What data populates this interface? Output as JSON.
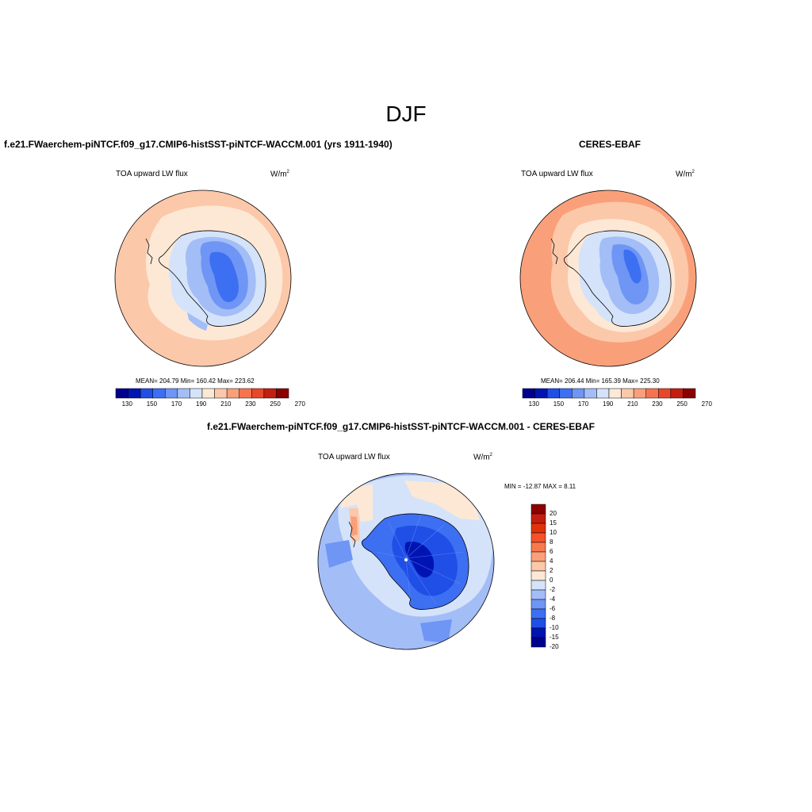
{
  "title": "DJF",
  "panels": [
    {
      "id": "model",
      "title": "f.e21.FWaerchem-piNTCF.f09_g17.CMIP6-histSST-piNTCF-WACCM.001 (yrs 1911-1940)",
      "field_label": "TOA upward LW flux",
      "units_base": "W/m",
      "units_exp": "2",
      "stats": "MEAN= 204.79  Min= 160.42  Max= 223.62",
      "colorbar_ticks": [
        "130",
        "150",
        "170",
        "190",
        "210",
        "230",
        "250",
        "270"
      ]
    },
    {
      "id": "obs",
      "title": "CERES-EBAF",
      "field_label": "TOA upward LW flux",
      "units_base": "W/m",
      "units_exp": "2",
      "stats": "MEAN= 206.44  Min= 165.39  Max= 225.30",
      "colorbar_ticks": [
        "130",
        "150",
        "170",
        "190",
        "210",
        "230",
        "250",
        "270"
      ]
    },
    {
      "id": "diff",
      "title": "f.e21.FWaerchem-piNTCF.f09_g17.CMIP6-histSST-piNTCF-WACCM.001 - CERES-EBAF",
      "field_label": "TOA upward LW flux",
      "units_base": "W/m",
      "units_exp": "2",
      "stats": "MIN = -12.87 MAX =   8.11",
      "colorbar_ticks": [
        "20",
        "15",
        "10",
        "8",
        "6",
        "4",
        "2",
        "0",
        "-2",
        "-4",
        "-6",
        "-8",
        "-10",
        "-15",
        "-20"
      ]
    }
  ],
  "colors": {
    "abs_scale": [
      "#00008f",
      "#0014b4",
      "#1f4fe6",
      "#3d6ff2",
      "#6f95f5",
      "#a3bdf7",
      "#d4e3fa",
      "#fde8d6",
      "#fcc8aa",
      "#f9a07a",
      "#f5744f",
      "#e8472b",
      "#c41e0f",
      "#8b0000"
    ],
    "diff_scale": [
      "#8b0000",
      "#c41e0f",
      "#e0320a",
      "#f5512a",
      "#f77a4d",
      "#f9a07a",
      "#fcc8aa",
      "#fde8d6",
      "#d4e3fa",
      "#a3bdf7",
      "#6f95f5",
      "#3d6ff2",
      "#1f4fe6",
      "#0014b4",
      "#00008f"
    ]
  }
}
